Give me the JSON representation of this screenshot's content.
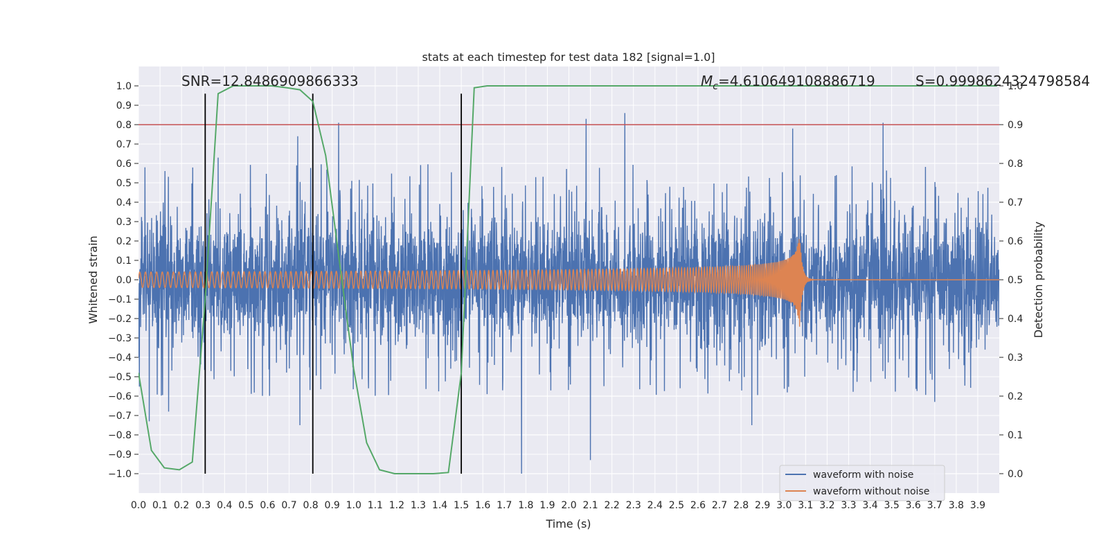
{
  "chart_data": {
    "type": "line",
    "title": "stats at each timestep for test data 182 [signal=1.0]",
    "xlabel": "Time (s)",
    "ylabel": "Whitened strain",
    "y2label": "Detection probability",
    "xlim": [
      0.0,
      4.0
    ],
    "ylim": [
      -1.1,
      1.1
    ],
    "y2lim": [
      -0.05,
      1.05
    ],
    "grid": true,
    "legend_position": "lower-right",
    "x_ticks": [
      "0.0",
      "0.1",
      "0.2",
      "0.3",
      "0.4",
      "0.5",
      "0.6",
      "0.7",
      "0.8",
      "0.9",
      "1.0",
      "1.1",
      "1.2",
      "1.3",
      "1.4",
      "1.5",
      "1.6",
      "1.7",
      "1.8",
      "1.9",
      "2.0",
      "2.1",
      "2.2",
      "2.3",
      "2.4",
      "2.5",
      "2.6",
      "2.7",
      "2.8",
      "2.9",
      "3.0",
      "3.1",
      "3.2",
      "3.3",
      "3.4",
      "3.5",
      "3.6",
      "3.7",
      "3.8",
      "3.9"
    ],
    "y_ticks": [
      "1.0",
      "0.9",
      "0.8",
      "0.7",
      "0.6",
      "0.5",
      "0.4",
      "0.3",
      "0.2",
      "0.1",
      "0.0",
      "−0.1",
      "−0.2",
      "−0.3",
      "−0.4",
      "−0.5",
      "−0.6",
      "−0.7",
      "−0.8",
      "−0.9",
      "−1.0"
    ],
    "y2_ticks": [
      "1.0",
      "0.9",
      "0.8",
      "0.7",
      "0.6",
      "0.5",
      "0.4",
      "0.3",
      "0.2",
      "0.1",
      "0.0"
    ],
    "annotations": {
      "snr": "SNR=12.8486909866333",
      "mc_symbol": "M",
      "mc_sub": "c",
      "mc_value": "=4.610649108886719",
      "s": "S=0.9998624324798584"
    },
    "series": [
      {
        "name": "waveform with noise",
        "color": "#4c72b0",
        "kind": "noise",
        "spike_points": [
          {
            "x": 0.03,
            "y": 0.58
          },
          {
            "x": 0.05,
            "y": -0.73
          },
          {
            "x": 0.14,
            "y": -0.68
          },
          {
            "x": 0.37,
            "y": 0.63
          },
          {
            "x": 0.74,
            "y": 0.74
          },
          {
            "x": 0.75,
            "y": -0.75
          },
          {
            "x": 0.93,
            "y": 0.81
          },
          {
            "x": 1.78,
            "y": -1.0
          },
          {
            "x": 2.08,
            "y": 0.83
          },
          {
            "x": 2.1,
            "y": -0.93
          },
          {
            "x": 2.26,
            "y": 0.86
          },
          {
            "x": 2.85,
            "y": -0.75
          },
          {
            "x": 3.04,
            "y": 0.78
          },
          {
            "x": 3.46,
            "y": 0.81
          },
          {
            "x": 3.7,
            "y": -0.63
          }
        ],
        "amplitude_core": 0.28,
        "amplitude_peak": 0.6
      },
      {
        "name": "waveform without noise",
        "color": "#dd8452",
        "kind": "chirp",
        "start_amplitude": 0.04,
        "peak_amplitude": 0.29,
        "merger_time": 3.07,
        "start_frequency_hz": 38,
        "end_frequency_hz": 115
      },
      {
        "name": "",
        "color": "#55a868",
        "axis": "right",
        "x": [
          0.0,
          0.06,
          0.12,
          0.19,
          0.25,
          0.31,
          0.37,
          0.44,
          0.5,
          0.56,
          0.62,
          0.69,
          0.75,
          0.81,
          0.87,
          0.94,
          1.0,
          1.06,
          1.12,
          1.19,
          1.25,
          1.31,
          1.37,
          1.44,
          1.5,
          1.56,
          1.62,
          1.69,
          1.75,
          3.99
        ],
        "y": [
          0.26,
          0.06,
          0.015,
          0.01,
          0.03,
          0.45,
          0.98,
          1.0,
          1.0,
          1.0,
          1.0,
          0.995,
          0.99,
          0.96,
          0.82,
          0.52,
          0.27,
          0.08,
          0.01,
          0.0,
          0.0,
          0.0,
          0.0,
          0.003,
          0.26,
          0.995,
          1.0,
          1.0,
          1.0,
          1.0
        ]
      }
    ],
    "threshold_line": {
      "axis": "right",
      "y": 0.9,
      "color": "#c44e52"
    },
    "vertical_lines": {
      "x": [
        0.31,
        0.81,
        1.5
      ],
      "y_from": -1.0,
      "y_to": 0.96,
      "color": "#000000"
    }
  }
}
